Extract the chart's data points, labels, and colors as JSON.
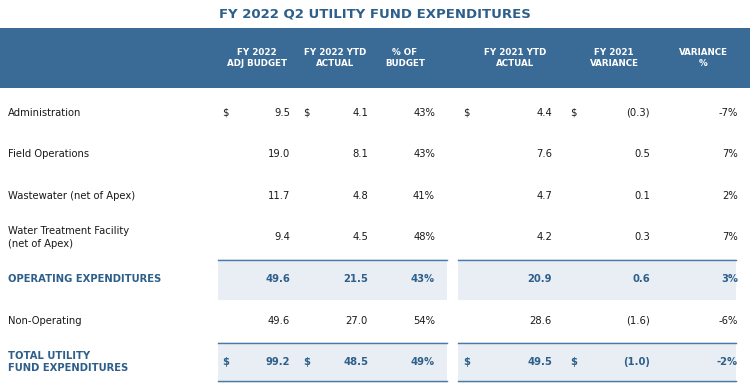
{
  "title": "FY 2022 Q2 UTILITY FUND EXPENDITURES",
  "title_color": "#2E5F8A",
  "header_bg_color": "#3A6B96",
  "header_text_color": "#FFFFFF",
  "highlight_bg_color": "#E8EEF4",
  "body_text_color": "#1a1a1a",
  "bold_row_text_color": "#2E5F8A",
  "accent_line_color": "#4A7BA8",
  "header_labels": [
    "FY 2022\nADJ BUDGET",
    "FY 2022 YTD\nACTUAL",
    "% OF\nBUDGET",
    "FY 2021 YTD\nACTUAL",
    "FY 2021\nVARIANCE",
    "VARIANCE\n%"
  ],
  "rows": [
    {
      "label": "Administration",
      "dollar1": "$",
      "col1": "9.5",
      "dollar2": "$",
      "col2": "4.1",
      "col3": "43%",
      "dollar3": "$",
      "col4": "4.4",
      "dollar4": "$",
      "col5": "(0.3)",
      "col6": "-7%",
      "bold": false,
      "highlight": false
    },
    {
      "label": "Field Operations",
      "dollar1": "",
      "col1": "19.0",
      "dollar2": "",
      "col2": "8.1",
      "col3": "43%",
      "dollar3": "",
      "col4": "7.6",
      "dollar4": "",
      "col5": "0.5",
      "col6": "7%",
      "bold": false,
      "highlight": false
    },
    {
      "label": "Wastewater (net of Apex)",
      "dollar1": "",
      "col1": "11.7",
      "dollar2": "",
      "col2": "4.8",
      "col3": "41%",
      "dollar3": "",
      "col4": "4.7",
      "dollar4": "",
      "col5": "0.1",
      "col6": "2%",
      "bold": false,
      "highlight": false
    },
    {
      "label": "Water Treatment Facility\n(net of Apex)",
      "dollar1": "",
      "col1": "9.4",
      "dollar2": "",
      "col2": "4.5",
      "col3": "48%",
      "dollar3": "",
      "col4": "4.2",
      "dollar4": "",
      "col5": "0.3",
      "col6": "7%",
      "bold": false,
      "highlight": false
    },
    {
      "label": "OPERATING EXPENDITURES",
      "dollar1": "",
      "col1": "49.6",
      "dollar2": "",
      "col2": "21.5",
      "col3": "43%",
      "dollar3": "",
      "col4": "20.9",
      "dollar4": "",
      "col5": "0.6",
      "col6": "3%",
      "bold": true,
      "highlight": true
    },
    {
      "label": "Non-Operating",
      "dollar1": "",
      "col1": "49.6",
      "dollar2": "",
      "col2": "27.0",
      "col3": "54%",
      "dollar3": "",
      "col4": "28.6",
      "dollar4": "",
      "col5": "(1.6)",
      "col6": "-6%",
      "bold": false,
      "highlight": false
    },
    {
      "label": "TOTAL UTILITY\nFUND EXPENDITURES",
      "dollar1": "$",
      "col1": "99.2",
      "dollar2": "$",
      "col2": "48.5",
      "col3": "49%",
      "dollar3": "$",
      "col4": "49.5",
      "dollar4": "$",
      "col5": "(1.0)",
      "col6": "-2%",
      "bold": true,
      "highlight": true
    }
  ],
  "figsize": [
    7.5,
    3.91
  ],
  "dpi": 100
}
